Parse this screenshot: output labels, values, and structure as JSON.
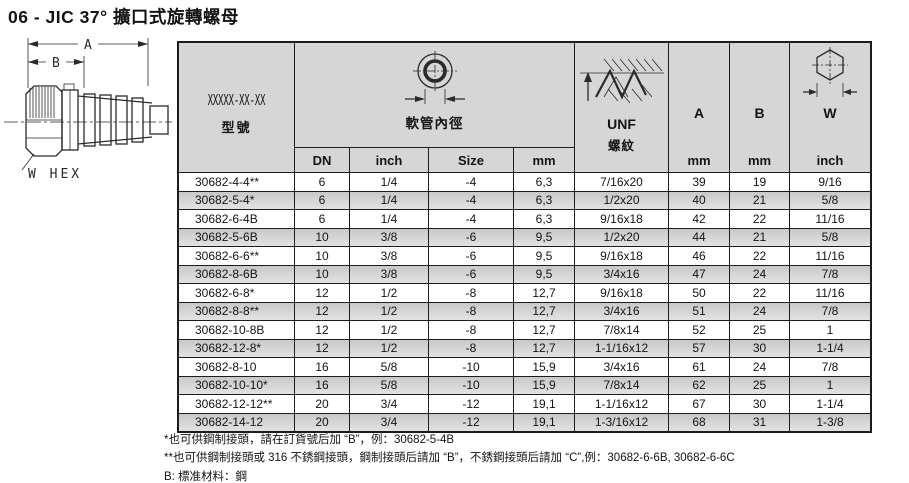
{
  "title": "06 - JIC 37° 擴口式旋轉螺母",
  "diagram": {
    "dim_a_label": "A",
    "dim_b_label": "B",
    "hex_label": "W HEX"
  },
  "table": {
    "header": {
      "model_mask": "XXXXX-XX-XX",
      "model_label": "型號",
      "hose_group_label": "軟管內徑",
      "sub_columns": [
        "DN",
        "inch",
        "Size",
        "mm"
      ],
      "unf_line1": "UNF",
      "unf_line2": "螺紋",
      "col_a_label": "A",
      "col_a_unit": "mm",
      "col_b_label": "B",
      "col_b_unit": "mm",
      "col_w_label": "W",
      "col_w_unit": "inch"
    },
    "rows": [
      [
        "30682-4-4**",
        "6",
        "1/4",
        "-4",
        "6,3",
        "7/16x20",
        "39",
        "19",
        "9/16"
      ],
      [
        "30682-5-4*",
        "6",
        "1/4",
        "-4",
        "6,3",
        "1/2x20",
        "40",
        "21",
        "5/8"
      ],
      [
        "30682-6-4B",
        "6",
        "1/4",
        "-4",
        "6,3",
        "9/16x18",
        "42",
        "22",
        "11/16"
      ],
      [
        "30682-5-6B",
        "10",
        "3/8",
        "-6",
        "9,5",
        "1/2x20",
        "44",
        "21",
        "5/8"
      ],
      [
        "30682-6-6**",
        "10",
        "3/8",
        "-6",
        "9,5",
        "9/16x18",
        "46",
        "22",
        "11/16"
      ],
      [
        "30682-8-6B",
        "10",
        "3/8",
        "-6",
        "9,5",
        "3/4x16",
        "47",
        "24",
        "7/8"
      ],
      [
        "30682-6-8*",
        "12",
        "1/2",
        "-8",
        "12,7",
        "9/16x18",
        "50",
        "22",
        "11/16"
      ],
      [
        "30682-8-8**",
        "12",
        "1/2",
        "-8",
        "12,7",
        "3/4x16",
        "51",
        "24",
        "7/8"
      ],
      [
        "30682-10-8B",
        "12",
        "1/2",
        "-8",
        "12,7",
        "7/8x14",
        "52",
        "25",
        "1"
      ],
      [
        "30682-12-8*",
        "12",
        "1/2",
        "-8",
        "12,7",
        "1-1/16x12",
        "57",
        "30",
        "1-1/4"
      ],
      [
        "30682-8-10",
        "16",
        "5/8",
        "-10",
        "15,9",
        "3/4x16",
        "61",
        "24",
        "7/8"
      ],
      [
        "30682-10-10*",
        "16",
        "5/8",
        "-10",
        "15,9",
        "7/8x14",
        "62",
        "25",
        "1"
      ],
      [
        "30682-12-12**",
        "20",
        "3/4",
        "-12",
        "19,1",
        "1-1/16x12",
        "67",
        "30",
        "1-1/4"
      ],
      [
        "30682-14-12",
        "20",
        "3/4",
        "-12",
        "19,1",
        "1-3/16x12",
        "68",
        "31",
        "1-3/8"
      ]
    ]
  },
  "footnotes": [
    "*也可供鋼制接頭，請在訂貨號后加 “B”，例：30682-5-4B",
    "**也可供鋼制接頭或 316 不銹鋼接頭，鋼制接頭后請加 “B”，不銹鋼接頭后請加 “C”,例：30682-6-6B, 30682-6-6C",
    "B: 標准材料：鋼"
  ],
  "colors": {
    "border": "#1c1c1c",
    "header_bg": "#d6d6d6",
    "alt_top": "#c8c8c8",
    "alt_bottom": "#e2e2e2",
    "text": "#141414"
  }
}
